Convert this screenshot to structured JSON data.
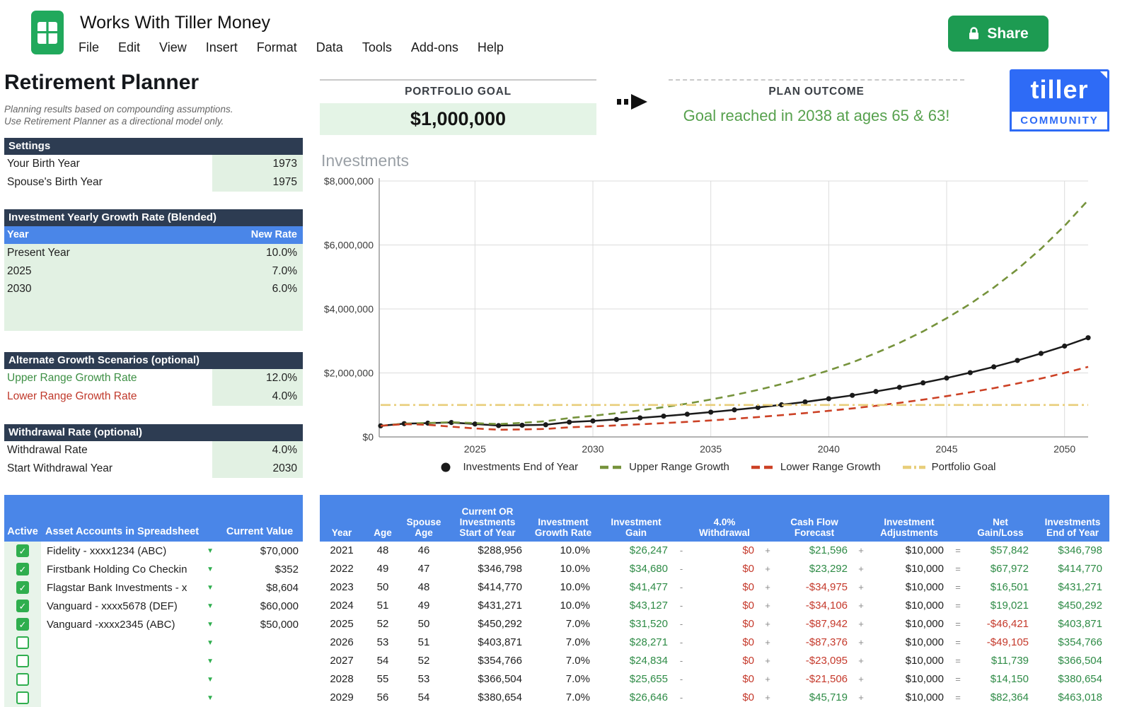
{
  "app": {
    "title": "Works With Tiller Money",
    "menus": [
      "File",
      "Edit",
      "View",
      "Insert",
      "Format",
      "Data",
      "Tools",
      "Add-ons",
      "Help"
    ],
    "share_label": "Share"
  },
  "page": {
    "title": "Retirement Planner",
    "subtitle_line1": "Planning results based on compounding assumptions.",
    "subtitle_line2": "Use Retirement Planner as a directional model only."
  },
  "goal": {
    "portfolio_goal_label": "PORTFOLIO GOAL",
    "portfolio_goal_value": "$1,000,000",
    "plan_outcome_label": "PLAN OUTCOME",
    "plan_outcome_value": "Goal reached in 2038 at ages 65 & 63!"
  },
  "logo": {
    "brand": "tiller",
    "community": "COMMUNITY"
  },
  "settings": {
    "header": "Settings",
    "rows": [
      {
        "label": "Your Birth Year",
        "value": "1973"
      },
      {
        "label": "Spouse's Birth Year",
        "value": "1975"
      }
    ]
  },
  "growth": {
    "header": "Investment Yearly Growth Rate (Blended)",
    "col_year": "Year",
    "col_rate": "New Rate",
    "rows": [
      {
        "year": "Present Year",
        "rate": "10.0%"
      },
      {
        "year": "2025",
        "rate": "7.0%"
      },
      {
        "year": "2030",
        "rate": "6.0%"
      }
    ]
  },
  "alternate": {
    "header": "Alternate Growth Scenarios (optional)",
    "rows": [
      {
        "label": "Upper Range Growth Rate",
        "value": "12.0%",
        "color": "green"
      },
      {
        "label": "Lower Range Growth Rate",
        "value": "4.0%",
        "color": "red"
      }
    ]
  },
  "withdrawal": {
    "header": "Withdrawal Rate (optional)",
    "rows": [
      {
        "label": "Withdrawal Rate",
        "value": "4.0%"
      },
      {
        "label": "Start Withdrawal Year",
        "value": "2030"
      }
    ]
  },
  "accounts": {
    "col_active": "Active",
    "col_name": "Asset Accounts in Spreadsheet",
    "col_value": "Current Value",
    "rows": [
      {
        "active": true,
        "name": "Fidelity - xxxx1234 (ABC)",
        "value": "$70,000"
      },
      {
        "active": true,
        "name": "Firstbank Holding Co Checkin",
        "value": "$352"
      },
      {
        "active": true,
        "name": "Flagstar Bank Investments - x",
        "value": "$8,604"
      },
      {
        "active": true,
        "name": "Vanguard - xxxx5678 (DEF)",
        "value": "$60,000"
      },
      {
        "active": true,
        "name": "Vanguard -xxxx2345 (ABC)",
        "value": "$50,000"
      },
      {
        "active": false,
        "name": "",
        "value": ""
      },
      {
        "active": false,
        "name": "",
        "value": ""
      },
      {
        "active": false,
        "name": "",
        "value": ""
      },
      {
        "active": false,
        "name": "",
        "value": ""
      }
    ]
  },
  "projection": {
    "headers": [
      "Year",
      "Age",
      "Spouse\nAge",
      "Current OR\nInvestments\nStart of Year",
      "Investment\nGrowth Rate",
      "Investment\nGain",
      "4.0%\nWithdrawal",
      "Cash Flow\nForecast",
      "Investment\nAdjustments",
      "Net\nGain/Loss",
      "Investments\nEnd of Year"
    ],
    "operators": [
      "-",
      "+",
      "+",
      "="
    ],
    "rows": [
      [
        "2021",
        "48",
        "46",
        "$288,956",
        "10.0%",
        "$26,247",
        "$0",
        "$21,596",
        "$10,000",
        "$57,842",
        "$346,798"
      ],
      [
        "2022",
        "49",
        "47",
        "$346,798",
        "10.0%",
        "$34,680",
        "$0",
        "$23,292",
        "$10,000",
        "$67,972",
        "$414,770"
      ],
      [
        "2023",
        "50",
        "48",
        "$414,770",
        "10.0%",
        "$41,477",
        "$0",
        "-$34,975",
        "$10,000",
        "$16,501",
        "$431,271"
      ],
      [
        "2024",
        "51",
        "49",
        "$431,271",
        "10.0%",
        "$43,127",
        "$0",
        "-$34,106",
        "$10,000",
        "$19,021",
        "$450,292"
      ],
      [
        "2025",
        "52",
        "50",
        "$450,292",
        "7.0%",
        "$31,520",
        "$0",
        "-$87,942",
        "$10,000",
        "-$46,421",
        "$403,871"
      ],
      [
        "2026",
        "53",
        "51",
        "$403,871",
        "7.0%",
        "$28,271",
        "$0",
        "-$87,376",
        "$10,000",
        "-$49,105",
        "$354,766"
      ],
      [
        "2027",
        "54",
        "52",
        "$354,766",
        "7.0%",
        "$24,834",
        "$0",
        "-$23,095",
        "$10,000",
        "$11,739",
        "$366,504"
      ],
      [
        "2028",
        "55",
        "53",
        "$366,504",
        "7.0%",
        "$25,655",
        "$0",
        "-$21,506",
        "$10,000",
        "$14,150",
        "$380,654"
      ],
      [
        "2029",
        "56",
        "54",
        "$380,654",
        "7.0%",
        "$26,646",
        "$0",
        "$45,719",
        "$10,000",
        "$82,364",
        "$463,018"
      ]
    ]
  },
  "chart_data": {
    "type": "line",
    "title": "Investments",
    "x": [
      2021,
      2022,
      2023,
      2024,
      2025,
      2026,
      2027,
      2028,
      2029,
      2030,
      2031,
      2032,
      2033,
      2034,
      2035,
      2036,
      2037,
      2038,
      2039,
      2040,
      2041,
      2042,
      2043,
      2044,
      2045,
      2046,
      2047,
      2048,
      2049,
      2050,
      2051
    ],
    "xticks": [
      2025,
      2030,
      2035,
      2040,
      2045,
      2050
    ],
    "ylim": [
      0,
      8000000
    ],
    "yticks": [
      "$0",
      "$2,000,000",
      "$4,000,000",
      "$6,000,000",
      "$8,000,000"
    ],
    "legend_position": "bottom",
    "grid": true,
    "series": [
      {
        "name": "Investments End of Year",
        "color": "#1a1a1a",
        "style": "solid-dots",
        "values": [
          346798,
          414770,
          431271,
          450292,
          403871,
          354766,
          366504,
          380654,
          463018,
          500000,
          545000,
          595000,
          650000,
          710000,
          775000,
          845000,
          920000,
          1005000,
          1095000,
          1195000,
          1300000,
          1420000,
          1550000,
          1690000,
          1840000,
          2010000,
          2190000,
          2390000,
          2610000,
          2840000,
          3100000
        ]
      },
      {
        "name": "Upper Range Growth",
        "color": "#76933c",
        "style": "dashed",
        "values": [
          346798,
          414770,
          435000,
          460000,
          430000,
          400000,
          440000,
          490000,
          590000,
          660000,
          740000,
          830000,
          930000,
          1040000,
          1170000,
          1310000,
          1470000,
          1650000,
          1850000,
          2080000,
          2330000,
          2620000,
          2940000,
          3300000,
          3710000,
          4160000,
          4670000,
          5240000,
          5880000,
          6600000,
          7400000
        ]
      },
      {
        "name": "Lower Range Growth",
        "color": "#cc4125",
        "style": "dashed",
        "values": [
          346798,
          400000,
          380000,
          320000,
          265000,
          225000,
          235000,
          250000,
          300000,
          330000,
          360000,
          395000,
          430000,
          470000,
          515000,
          565000,
          620000,
          680000,
          745000,
          815000,
          890000,
          975000,
          1065000,
          1165000,
          1275000,
          1395000,
          1525000,
          1670000,
          1825000,
          2000000,
          2190000
        ]
      },
      {
        "name": "Portfolio Goal",
        "color": "#e8ce7a",
        "style": "dashdot",
        "constant": 1000000
      }
    ]
  }
}
